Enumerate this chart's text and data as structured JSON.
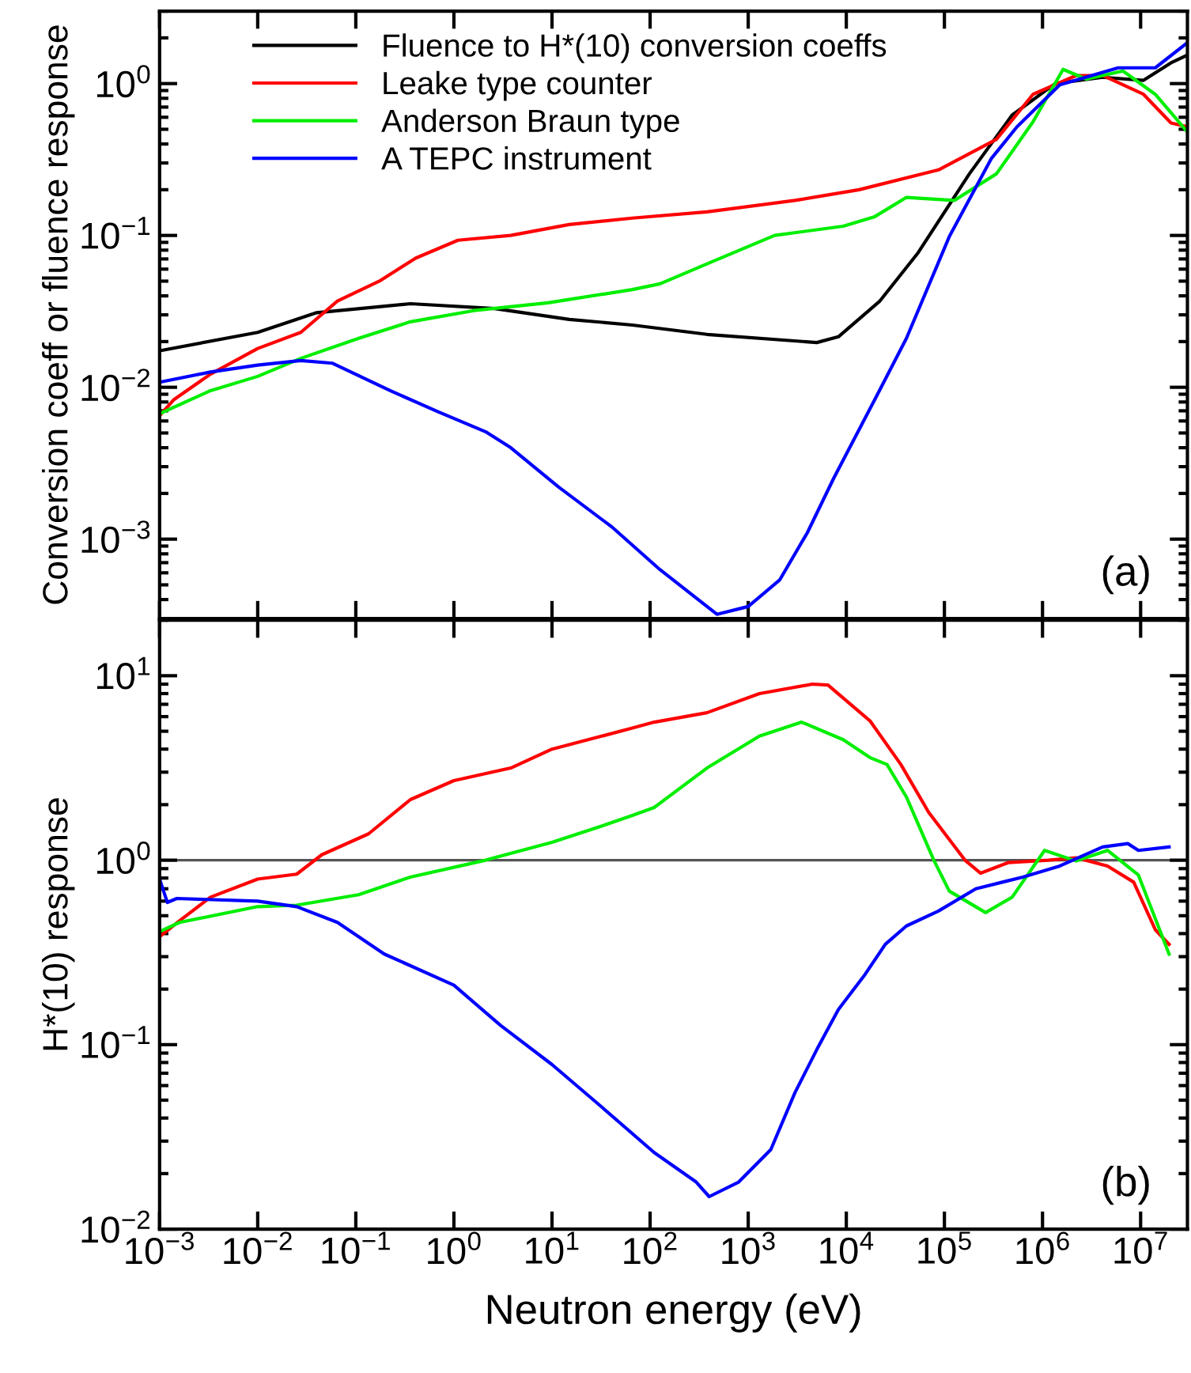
{
  "chart_data": [
    {
      "type": "line",
      "ylabel": "Conversion coeff or fluence response",
      "log": "xy",
      "xlim": [
        0.001,
        30000000
      ],
      "ylim": [
        0.0003,
        3
      ],
      "xticks": [
        {
          "value": 0.001,
          "label": null
        },
        {
          "value": 0.01,
          "label": null
        },
        {
          "value": 0.1,
          "label": null
        },
        {
          "value": 1,
          "label": null
        },
        {
          "value": 10,
          "label": null
        },
        {
          "value": 100,
          "label": null
        },
        {
          "value": 1000,
          "label": null
        },
        {
          "value": 10000,
          "label": null
        },
        {
          "value": 100000,
          "label": null
        },
        {
          "value": 1000000,
          "label": null
        },
        {
          "value": 10000000,
          "label": null
        }
      ],
      "yticks": [
        {
          "value": 0.001,
          "label": "10$^{−3}$"
        },
        {
          "value": 0.01,
          "label": "10$^{−2}$"
        },
        {
          "value": 0.1,
          "label": "10$^{−1}$"
        },
        {
          "value": 1,
          "label": "10$^{0}$"
        }
      ],
      "tick_labels": "y",
      "legend": "top left",
      "grid": false,
      "annotations": [
        "(a)"
      ],
      "series": [
        {
          "name": "Fluence to H*(10) conversion coeffs",
          "color": "#000000",
          "x": [
            0.001,
            0.01,
            0.04,
            0.36,
            2.6,
            15,
            66,
            380,
            5000,
            8300,
            22000,
            54000,
            180000,
            490000,
            1350000,
            4100000,
            10700000,
            20400000,
            30000000
          ],
          "values": [
            0.0174,
            0.023,
            0.031,
            0.0355,
            0.033,
            0.028,
            0.0257,
            0.0223,
            0.0197,
            0.0215,
            0.037,
            0.077,
            0.255,
            0.62,
            1.0,
            1.1,
            1.05,
            1.37,
            1.54
          ]
        },
        {
          "name": "Leake type counter",
          "color": "#ff0000",
          "x": [
            0.001,
            0.0014,
            0.0033,
            0.01,
            0.0275,
            0.065,
            0.174,
            0.41,
            1.1,
            3.8,
            15,
            66,
            380,
            3000,
            13500,
            87000,
            340000,
            800000,
            2200000,
            4100000,
            10700000,
            20400000,
            30000000
          ],
          "values": [
            0.0065,
            0.0083,
            0.0122,
            0.018,
            0.023,
            0.037,
            0.05,
            0.071,
            0.093,
            0.1,
            0.118,
            0.13,
            0.143,
            0.17,
            0.2,
            0.27,
            0.43,
            0.85,
            1.13,
            1.13,
            0.85,
            0.55,
            0.52
          ]
        },
        {
          "name": "Anderson Braun type",
          "color": "#00ee00",
          "x": [
            0.001,
            0.0033,
            0.01,
            0.0275,
            0.107,
            0.36,
            1.6,
            9.1,
            66,
            126,
            380,
            1860,
            9300,
            19500,
            41000,
            126000,
            340000,
            800000,
            1620000,
            2800000,
            6600000,
            14100000,
            30000000
          ],
          "values": [
            0.0067,
            0.0095,
            0.0118,
            0.0155,
            0.021,
            0.027,
            0.032,
            0.036,
            0.044,
            0.048,
            0.065,
            0.1,
            0.115,
            0.133,
            0.178,
            0.17,
            0.255,
            0.56,
            1.24,
            1.07,
            1.21,
            0.85,
            0.48
          ]
        },
        {
          "name": "A TEPC instrument",
          "color": "#0000ff",
          "x": [
            0.001,
            0.0033,
            0.01,
            0.0275,
            0.058,
            0.224,
            0.69,
            2.1,
            3.8,
            11.7,
            41,
            126,
            480,
            1000,
            2100,
            4000,
            7400,
            19500,
            41000,
            112000,
            300000,
            550000,
            1500000,
            5900000,
            14100000,
            30000000
          ],
          "values": [
            0.0108,
            0.0126,
            0.014,
            0.015,
            0.0144,
            0.0095,
            0.0069,
            0.0051,
            0.004,
            0.0022,
            0.0012,
            0.00063,
            0.00032,
            0.00036,
            0.00054,
            0.0011,
            0.0025,
            0.0083,
            0.021,
            0.098,
            0.32,
            0.52,
            0.98,
            1.27,
            1.27,
            1.86
          ]
        }
      ]
    },
    {
      "type": "line",
      "xlabel": "Neutron energy (eV)",
      "ylabel": "H*(10) response",
      "log": "xy",
      "xlim": [
        0.001,
        30000000
      ],
      "ylim": [
        0.01,
        20
      ],
      "xticks": [
        {
          "value": 0.001,
          "label": "10$^{−3}$"
        },
        {
          "value": 0.01,
          "label": "10$^{−2}$"
        },
        {
          "value": 0.1,
          "label": "10$^{−1}$"
        },
        {
          "value": 1,
          "label": "10$^{0}$"
        },
        {
          "value": 10,
          "label": "10$^{1}$"
        },
        {
          "value": 100,
          "label": "10$^{2}$"
        },
        {
          "value": 1000,
          "label": "10$^{3}$"
        },
        {
          "value": 10000,
          "label": "10$^{4}$"
        },
        {
          "value": 100000,
          "label": "10$^{5}$"
        },
        {
          "value": 1000000,
          "label": "10$^{6}$"
        },
        {
          "value": 10000000,
          "label": "10$^{7}$"
        }
      ],
      "yticks": [
        {
          "value": 0.01,
          "label": "10$^{−2}$"
        },
        {
          "value": 0.1,
          "label": "10$^{−1}$"
        },
        {
          "value": 1,
          "label": "10$^{0}$"
        },
        {
          "value": 10,
          "label": "10$^{1}$"
        }
      ],
      "grid": false,
      "legend": false,
      "annotations": [
        "(b)"
      ],
      "ref_lines": [
        {
          "axis": "y",
          "value": 1,
          "label": null,
          "color": "#555555"
        }
      ],
      "series": [
        {
          "color": "#ff0000",
          "x": [
            0.001,
            0.0016,
            0.0033,
            0.01,
            0.025,
            0.045,
            0.135,
            0.36,
            1.0,
            3.8,
            10,
            32,
            66,
            110,
            380,
            1300,
            4500,
            6500,
            17400,
            36000,
            69000,
            162000,
            234000,
            447000,
            1150000,
            2200000,
            4600000,
            8500000,
            14100000,
            19500000
          ],
          "values": [
            0.385,
            0.47,
            0.63,
            0.79,
            0.84,
            1.07,
            1.39,
            2.13,
            2.7,
            3.16,
            4.0,
            4.7,
            5.2,
            5.6,
            6.3,
            8.0,
            9.0,
            8.9,
            5.7,
            3.3,
            1.82,
            1.0,
            0.85,
            0.97,
            1.0,
            1.03,
            0.93,
            0.76,
            0.42,
            0.35
          ]
        },
        {
          "color": "#00ee00",
          "x": [
            0.001,
            0.0016,
            0.01,
            0.025,
            0.107,
            0.36,
            2.1,
            10,
            32,
            66,
            110,
            380,
            1300,
            3500,
            9300,
            17400,
            26000,
            41000,
            78000,
            112000,
            263000,
            490000,
            1050000,
            2200000,
            4600000,
            9500000,
            19500000
          ],
          "values": [
            0.41,
            0.46,
            0.56,
            0.57,
            0.65,
            0.81,
            1.0,
            1.25,
            1.53,
            1.75,
            1.93,
            3.16,
            4.7,
            5.6,
            4.5,
            3.6,
            3.3,
            2.2,
            1.0,
            0.68,
            0.52,
            0.63,
            1.13,
            0.99,
            1.13,
            0.83,
            0.31
          ]
        },
        {
          "color": "#0000ff",
          "x": [
            0.001,
            0.0012,
            0.0015,
            0.01,
            0.025,
            0.065,
            0.195,
            1.0,
            3.0,
            10,
            32,
            110,
            295,
            400,
            800,
            1700,
            3000,
            5000,
            8300,
            15500,
            25000,
            41000,
            87000,
            209000,
            630000,
            1500000,
            4100000,
            7400000,
            9500000,
            19500000
          ],
          "values": [
            0.79,
            0.59,
            0.62,
            0.6,
            0.56,
            0.46,
            0.31,
            0.21,
            0.127,
            0.078,
            0.046,
            0.026,
            0.018,
            0.015,
            0.018,
            0.027,
            0.055,
            0.094,
            0.155,
            0.24,
            0.35,
            0.44,
            0.53,
            0.7,
            0.81,
            0.93,
            1.18,
            1.23,
            1.13,
            1.18
          ]
        }
      ]
    }
  ]
}
